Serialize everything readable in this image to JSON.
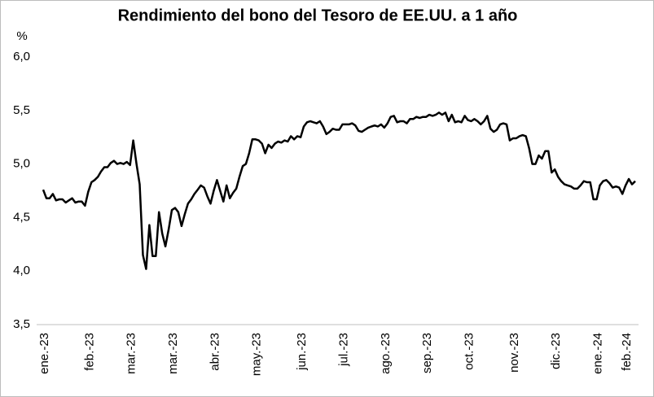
{
  "chart_data": {
    "type": "line",
    "title": "Rendimiento del bono del Tesoro de EE.UU. a 1 año",
    "y_label": "%",
    "color": "#000000",
    "categories": [
      "ene.-23",
      null,
      null,
      null,
      null,
      null,
      null,
      null,
      null,
      null,
      null,
      null,
      null,
      null,
      "feb.-23",
      null,
      null,
      null,
      null,
      null,
      null,
      null,
      null,
      null,
      null,
      null,
      null,
      "mar.-23",
      null,
      null,
      null,
      null,
      null,
      null,
      null,
      null,
      null,
      null,
      null,
      null,
      "mar.-23",
      null,
      null,
      null,
      null,
      null,
      null,
      null,
      null,
      null,
      null,
      null,
      null,
      "abr.-23",
      null,
      null,
      null,
      null,
      null,
      null,
      null,
      null,
      null,
      null,
      null,
      null,
      "may.-23",
      null,
      null,
      null,
      null,
      null,
      null,
      null,
      null,
      null,
      null,
      null,
      null,
      null,
      "jun.-23",
      null,
      null,
      null,
      null,
      null,
      null,
      null,
      null,
      null,
      null,
      null,
      null,
      "jul.-23",
      null,
      null,
      null,
      null,
      null,
      null,
      null,
      null,
      null,
      null,
      null,
      null,
      "ago.-23",
      null,
      null,
      null,
      null,
      null,
      null,
      null,
      null,
      null,
      null,
      null,
      null,
      "sep.-23",
      null,
      null,
      null,
      null,
      null,
      null,
      null,
      null,
      null,
      null,
      null,
      null,
      "oct.-23",
      null,
      null,
      null,
      null,
      null,
      null,
      null,
      null,
      null,
      null,
      null,
      null,
      null,
      "nov.-23",
      null,
      null,
      null,
      null,
      null,
      null,
      null,
      null,
      null,
      null,
      null,
      null,
      "dic.-23",
      null,
      null,
      null,
      null,
      null,
      null,
      null,
      null,
      null,
      null,
      null,
      null,
      "ene.-24",
      null,
      null,
      null,
      null,
      null,
      null,
      null,
      null,
      "feb.-24",
      null,
      null,
      null
    ],
    "values": [
      4.76,
      4.68,
      4.68,
      4.72,
      4.66,
      4.67,
      4.67,
      4.64,
      4.66,
      4.68,
      4.64,
      4.65,
      4.65,
      4.61,
      4.74,
      4.83,
      4.85,
      4.88,
      4.93,
      4.97,
      4.97,
      5.01,
      5.03,
      5.0,
      5.01,
      5.0,
      5.02,
      4.99,
      5.22,
      5.0,
      4.81,
      4.15,
      4.02,
      4.43,
      4.14,
      4.14,
      4.55,
      4.35,
      4.23,
      4.39,
      4.57,
      4.59,
      4.55,
      4.42,
      4.53,
      4.63,
      4.67,
      4.72,
      4.76,
      4.8,
      4.78,
      4.7,
      4.63,
      4.75,
      4.85,
      4.75,
      4.65,
      4.8,
      4.68,
      4.73,
      4.77,
      4.88,
      4.98,
      5.0,
      5.1,
      5.23,
      5.23,
      5.22,
      5.19,
      5.1,
      5.18,
      5.15,
      5.19,
      5.21,
      5.2,
      5.22,
      5.21,
      5.26,
      5.23,
      5.26,
      5.25,
      5.35,
      5.39,
      5.4,
      5.39,
      5.38,
      5.4,
      5.35,
      5.28,
      5.3,
      5.33,
      5.32,
      5.32,
      5.37,
      5.37,
      5.37,
      5.38,
      5.36,
      5.31,
      5.3,
      5.32,
      5.34,
      5.35,
      5.36,
      5.35,
      5.37,
      5.34,
      5.38,
      5.44,
      5.45,
      5.39,
      5.4,
      5.4,
      5.38,
      5.42,
      5.42,
      5.44,
      5.43,
      5.44,
      5.44,
      5.46,
      5.45,
      5.46,
      5.48,
      5.46,
      5.48,
      5.4,
      5.46,
      5.39,
      5.4,
      5.39,
      5.45,
      5.41,
      5.4,
      5.42,
      5.4,
      5.37,
      5.4,
      5.45,
      5.33,
      5.3,
      5.32,
      5.37,
      5.38,
      5.37,
      5.22,
      5.24,
      5.24,
      5.26,
      5.27,
      5.26,
      5.15,
      5.0,
      5.0,
      5.08,
      5.05,
      5.12,
      5.12,
      4.92,
      4.95,
      4.88,
      4.84,
      4.81,
      4.8,
      4.79,
      4.77,
      4.77,
      4.8,
      4.84,
      4.83,
      4.83,
      4.67,
      4.67,
      4.8,
      4.84,
      4.85,
      4.82,
      4.78,
      4.79,
      4.78,
      4.72,
      4.8,
      4.86,
      4.81,
      4.84
    ],
    "ylim": [
      3.5,
      6.0
    ],
    "yticks": [
      {
        "value": 3.5,
        "label": "3,5"
      },
      {
        "value": 4.0,
        "label": "4,0"
      },
      {
        "value": 4.5,
        "label": "4,5"
      },
      {
        "value": 5.0,
        "label": "5,0"
      },
      {
        "value": 5.5,
        "label": "5,5"
      },
      {
        "value": 6.0,
        "label": "6,0"
      }
    ],
    "grid": false
  }
}
